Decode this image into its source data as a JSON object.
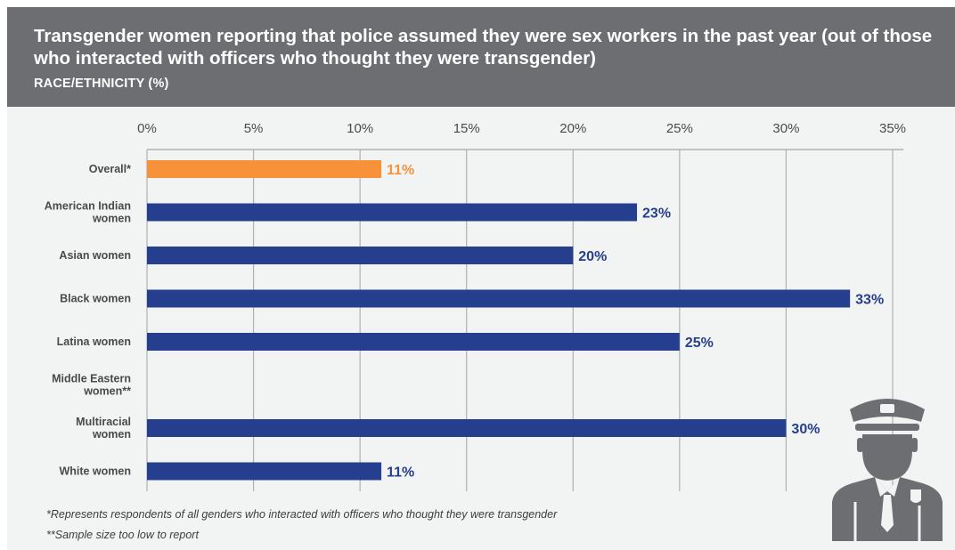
{
  "header": {
    "title": "Transgender women reporting that police assumed they were sex workers in the past year (out of those who interacted with officers who thought they were transgender)",
    "subtitle": "RACE/ETHNICITY (%)"
  },
  "footnotes": [
    "*Represents respondents of all genders who interacted with officers who thought they were transgender",
    "**Sample size too low to report"
  ],
  "colors": {
    "header_bg": "#6d6e71",
    "overall_bar": "#f7923a",
    "group_bar": "#253f8e",
    "icon": "#6d6e71"
  },
  "icon": "police-officer-icon",
  "chart_data": {
    "type": "bar",
    "orientation": "horizontal",
    "categories": [
      "Overall*",
      "American Indian women",
      "Asian women",
      "Black women",
      "Latina women",
      "Middle Eastern women**",
      "Multiracial women",
      "White women"
    ],
    "values": [
      11,
      23,
      20,
      33,
      25,
      null,
      30,
      11
    ],
    "data_labels": [
      "11%",
      "23%",
      "20%",
      "33%",
      "25%",
      "",
      "30%",
      "11%"
    ],
    "highlight": [
      true,
      false,
      false,
      false,
      false,
      false,
      false,
      false
    ],
    "xlim": [
      0,
      35
    ],
    "xticks": [
      0,
      5,
      10,
      15,
      20,
      25,
      30,
      35
    ],
    "xtick_labels": [
      "0%",
      "5%",
      "10%",
      "15%",
      "20%",
      "25%",
      "30%",
      "35%"
    ],
    "axis_position": "top",
    "grid": true,
    "legend": "none"
  }
}
